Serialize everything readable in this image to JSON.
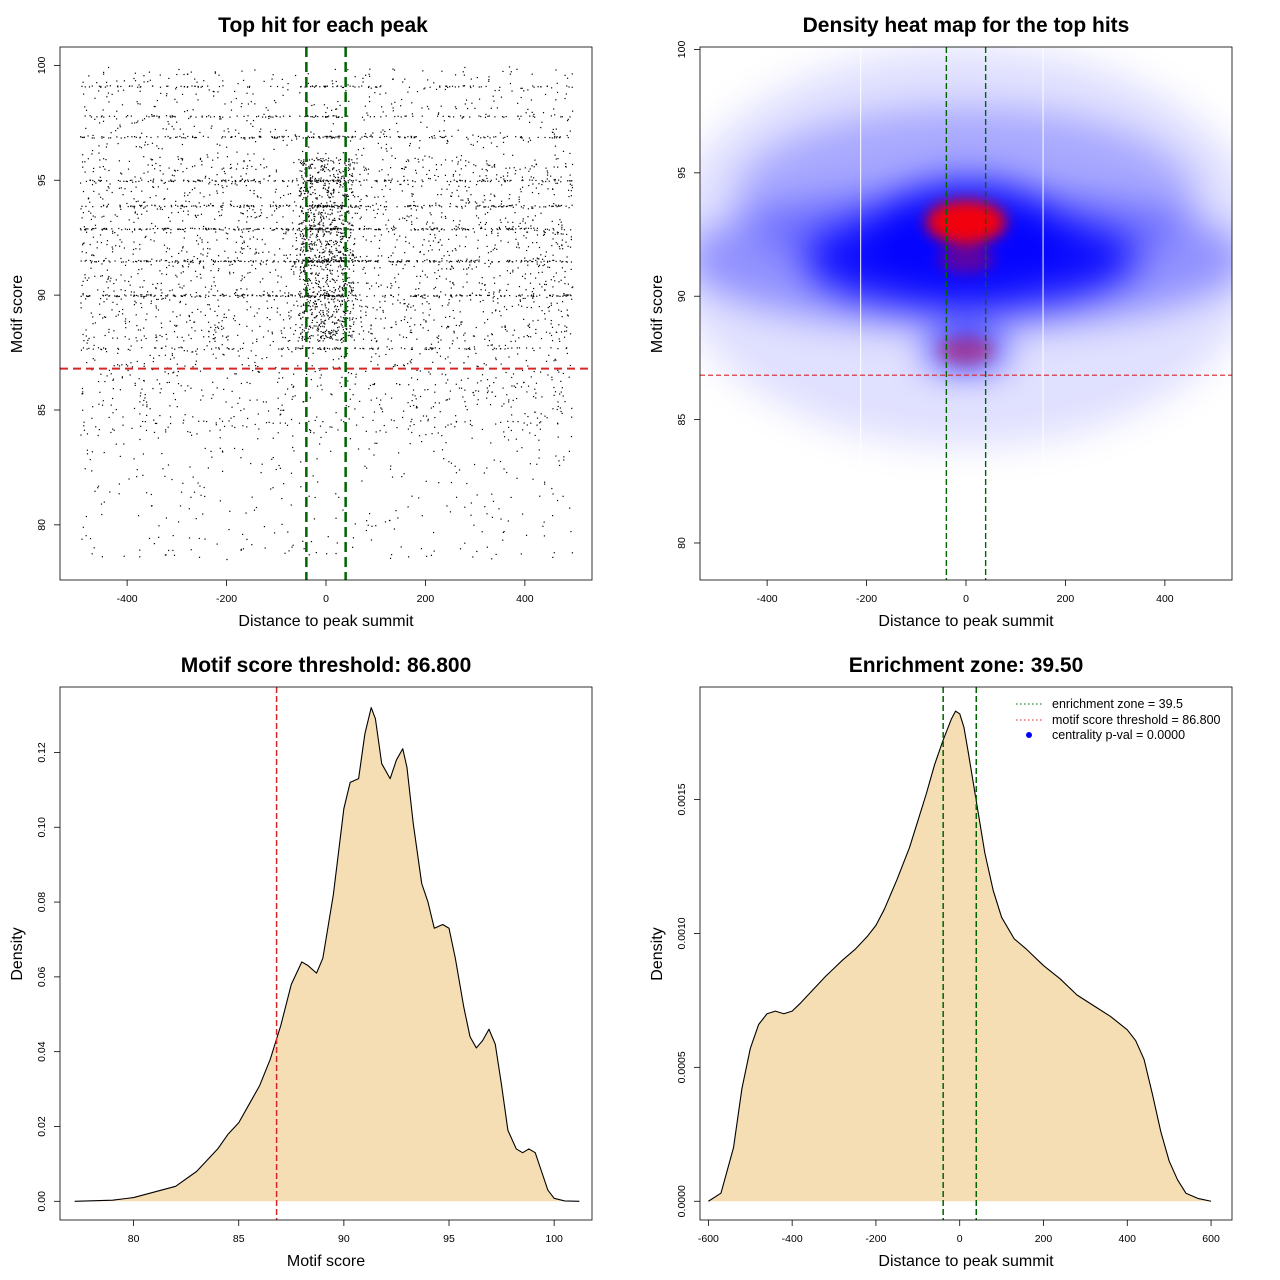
{
  "colors": {
    "fill_density": "#F5DEB3",
    "threshold_red": "#D62728",
    "zone_green": "#006400",
    "heat_blue": "#0000FF",
    "heat_red": "#FF0000"
  },
  "chart_data": [
    {
      "id": "top-hit",
      "type": "scatter",
      "title": "Top hit for each peak",
      "xlabel": "Distance to peak summit",
      "ylabel": "Motif score",
      "xlim": [
        -535,
        535
      ],
      "ylim": [
        77.6,
        100.8
      ],
      "xticks": [
        -400,
        -200,
        0,
        200,
        400
      ],
      "xtick_labels": [
        "-400",
        "-200",
        "0",
        "200",
        "400"
      ],
      "yticks": [
        80,
        85,
        90,
        95,
        100
      ],
      "ytick_labels": [
        "80",
        "85",
        "90",
        "95",
        "100"
      ],
      "hline": 86.8,
      "vlines": [
        -39.5,
        39.5
      ],
      "point_description_rows": [
        {
          "y": 99.1,
          "weight": 0.35
        },
        {
          "y": 97.8,
          "weight": 0.35
        },
        {
          "y": 96.9,
          "weight": 0.6
        },
        {
          "y": 95.0,
          "weight": 0.6
        },
        {
          "y": 93.9,
          "weight": 0.7
        },
        {
          "y": 92.9,
          "weight": 0.8
        },
        {
          "y": 91.5,
          "weight": 0.9
        },
        {
          "y": 90.0,
          "weight": 0.8
        },
        {
          "y": 87.7,
          "weight": 0.4
        }
      ]
    },
    {
      "id": "heatmap",
      "type": "heatmap",
      "title": "Density heat map for the top hits",
      "xlabel": "Distance to peak summit",
      "ylabel": "Motif score",
      "xlim": [
        -535,
        535
      ],
      "ylim": [
        78.5,
        100.1
      ],
      "xticks": [
        -400,
        -200,
        0,
        200,
        400
      ],
      "xtick_labels": [
        "-400",
        "-200",
        "0",
        "200",
        "400"
      ],
      "yticks": [
        80,
        85,
        90,
        95,
        100
      ],
      "ytick_labels": [
        "80",
        "85",
        "90",
        "95",
        "100"
      ],
      "hline": 86.8,
      "vlines": [
        -39.5,
        39.5
      ],
      "hotspots": [
        {
          "x": 0,
          "y": 93.0,
          "level": "high"
        },
        {
          "x": 0,
          "y": 91.5,
          "level": "medium"
        },
        {
          "x": 0,
          "y": 87.8,
          "level": "medium"
        }
      ]
    },
    {
      "id": "score-density",
      "type": "area",
      "title": "Motif score threshold: 86.800",
      "xlabel": "Motif score",
      "ylabel": "Density",
      "xlim": [
        76.5,
        101.8
      ],
      "ylim": [
        -0.005,
        0.1375
      ],
      "xticks": [
        80,
        85,
        90,
        95,
        100
      ],
      "xtick_labels": [
        "80",
        "85",
        "90",
        "95",
        "100"
      ],
      "yticks": [
        0,
        0.02,
        0.04,
        0.06,
        0.08,
        0.1,
        0.12
      ],
      "ytick_labels": [
        "0.00",
        "0.02",
        "0.04",
        "0.06",
        "0.08",
        "0.10",
        "0.12"
      ],
      "vline": 86.8,
      "x": [
        77.2,
        79,
        80,
        81,
        82,
        83,
        83.5,
        84,
        84.5,
        85,
        85.5,
        86,
        86.5,
        87,
        87.5,
        88,
        88.3,
        88.7,
        89,
        89.5,
        90,
        90.3,
        90.7,
        91,
        91.3,
        91.5,
        91.8,
        92.2,
        92.5,
        92.8,
        93,
        93.3,
        93.7,
        94,
        94.3,
        94.7,
        95,
        95.3,
        95.7,
        96,
        96.3,
        96.6,
        96.9,
        97.2,
        97.5,
        97.8,
        98.2,
        98.5,
        98.8,
        99.1,
        99.4,
        99.7,
        100,
        100.5,
        101.2
      ],
      "y": [
        0.0,
        0.0003,
        0.001,
        0.0025,
        0.004,
        0.008,
        0.011,
        0.014,
        0.018,
        0.021,
        0.026,
        0.031,
        0.038,
        0.047,
        0.058,
        0.064,
        0.063,
        0.061,
        0.065,
        0.082,
        0.105,
        0.112,
        0.113,
        0.125,
        0.132,
        0.129,
        0.117,
        0.113,
        0.118,
        0.121,
        0.116,
        0.101,
        0.085,
        0.08,
        0.073,
        0.074,
        0.073,
        0.065,
        0.052,
        0.044,
        0.041,
        0.043,
        0.046,
        0.042,
        0.031,
        0.019,
        0.014,
        0.013,
        0.014,
        0.013,
        0.008,
        0.003,
        0.0008,
        0.0001,
        0.0
      ]
    },
    {
      "id": "distance-density",
      "type": "area",
      "title": "Enrichment zone: 39.50",
      "xlabel": "Distance to peak summit",
      "ylabel": "Density",
      "xlim": [
        -620,
        650
      ],
      "ylim": [
        -7e-05,
        0.00192
      ],
      "xticks": [
        -600,
        -400,
        -200,
        0,
        200,
        400,
        600
      ],
      "xtick_labels": [
        "-600",
        "-400",
        "-200",
        "0",
        "200",
        "400",
        "600"
      ],
      "yticks": [
        0,
        0.0005,
        0.001,
        0.0015
      ],
      "ytick_labels": [
        "0.0000",
        "0.0005",
        "0.0010",
        "0.0015"
      ],
      "vlines": [
        -39.5,
        39.5
      ],
      "x": [
        -600,
        -570,
        -540,
        -520,
        -500,
        -480,
        -460,
        -440,
        -420,
        -400,
        -380,
        -350,
        -320,
        -300,
        -280,
        -250,
        -220,
        -200,
        -180,
        -150,
        -120,
        -100,
        -80,
        -60,
        -40,
        -20,
        -10,
        0,
        10,
        20,
        40,
        60,
        80,
        100,
        130,
        160,
        200,
        240,
        280,
        320,
        360,
        400,
        420,
        440,
        460,
        480,
        500,
        520,
        540,
        570,
        600
      ],
      "y": [
        0.0,
        3e-05,
        0.0002,
        0.00042,
        0.00057,
        0.00066,
        0.0007,
        0.00071,
        0.0007,
        0.00071,
        0.00074,
        0.00079,
        0.00084,
        0.00087,
        0.0009,
        0.00094,
        0.00099,
        0.00103,
        0.00109,
        0.0012,
        0.00132,
        0.00142,
        0.00152,
        0.00163,
        0.00172,
        0.0018,
        0.00183,
        0.00182,
        0.00177,
        0.00168,
        0.00149,
        0.0013,
        0.00116,
        0.00106,
        0.00098,
        0.00094,
        0.00088,
        0.00083,
        0.00077,
        0.00073,
        0.00069,
        0.00064,
        0.0006,
        0.00053,
        0.0004,
        0.00026,
        0.00015,
        8e-05,
        3e-05,
        1e-05,
        0.0
      ],
      "legend": [
        {
          "label": "enrichment zone = 39.5",
          "symbol": "dotted-line",
          "color": "#006400"
        },
        {
          "label": "motif score threshold = 86.800",
          "symbol": "dotted-line",
          "color": "#D62728"
        },
        {
          "label": "centrality p-val = 0.0000",
          "symbol": "dot",
          "color": "#0000FF"
        }
      ],
      "legend_position": "top-right"
    }
  ]
}
